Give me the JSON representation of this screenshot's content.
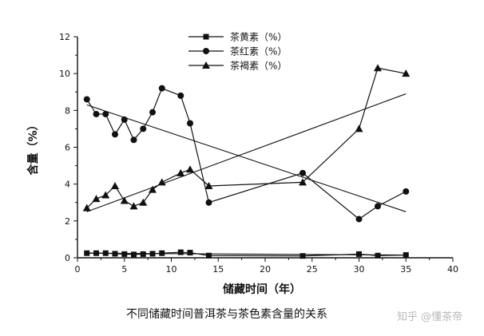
{
  "chart_data": {
    "type": "line",
    "xlabel": "储藏时间（年）",
    "ylabel": "含量（%）",
    "xlim": [
      0,
      40
    ],
    "ylim": [
      0,
      12
    ],
    "xticks": [
      0,
      5,
      10,
      15,
      20,
      25,
      30,
      35,
      40
    ],
    "yticks": [
      0,
      2,
      4,
      6,
      8,
      10,
      12
    ],
    "grid": false,
    "legend_position": "top",
    "series": [
      {
        "name": "茶黄素（%）",
        "marker": "square",
        "x": [
          1,
          2,
          3,
          4,
          5,
          6,
          7,
          8,
          9,
          11,
          12,
          14,
          24,
          30,
          32,
          35
        ],
        "values": [
          0.25,
          0.25,
          0.25,
          0.22,
          0.2,
          0.18,
          0.2,
          0.22,
          0.25,
          0.3,
          0.28,
          0.12,
          0.1,
          0.2,
          0.12,
          0.15
        ],
        "trendline": [
          [
            1,
            0.25
          ],
          [
            35,
            0.15
          ]
        ]
      },
      {
        "name": "茶红素（%）",
        "marker": "circle",
        "x": [
          1,
          2,
          3,
          4,
          5,
          6,
          7,
          8,
          9,
          11,
          12,
          14,
          24,
          30,
          32,
          35
        ],
        "values": [
          8.6,
          7.8,
          7.8,
          6.7,
          7.5,
          6.4,
          7.0,
          7.9,
          9.2,
          8.8,
          7.3,
          3.0,
          4.6,
          2.1,
          2.8,
          3.6
        ],
        "trendline": [
          [
            1,
            8.3
          ],
          [
            35,
            2.5
          ]
        ]
      },
      {
        "name": "茶褐素（%）",
        "marker": "triangle",
        "x": [
          1,
          2,
          3,
          4,
          5,
          6,
          7,
          8,
          9,
          11,
          12,
          14,
          24,
          30,
          32,
          35
        ],
        "values": [
          2.7,
          3.2,
          3.4,
          3.9,
          3.1,
          2.8,
          3.0,
          3.7,
          4.1,
          4.6,
          4.8,
          3.9,
          4.1,
          7.0,
          10.3,
          10.0
        ],
        "trendline": [
          [
            1,
            2.5
          ],
          [
            35,
            8.9
          ]
        ]
      }
    ]
  },
  "caption": "不同储藏时间普洱茶与茶色素含量的关系",
  "watermark": "知乎 @懂茶帝"
}
